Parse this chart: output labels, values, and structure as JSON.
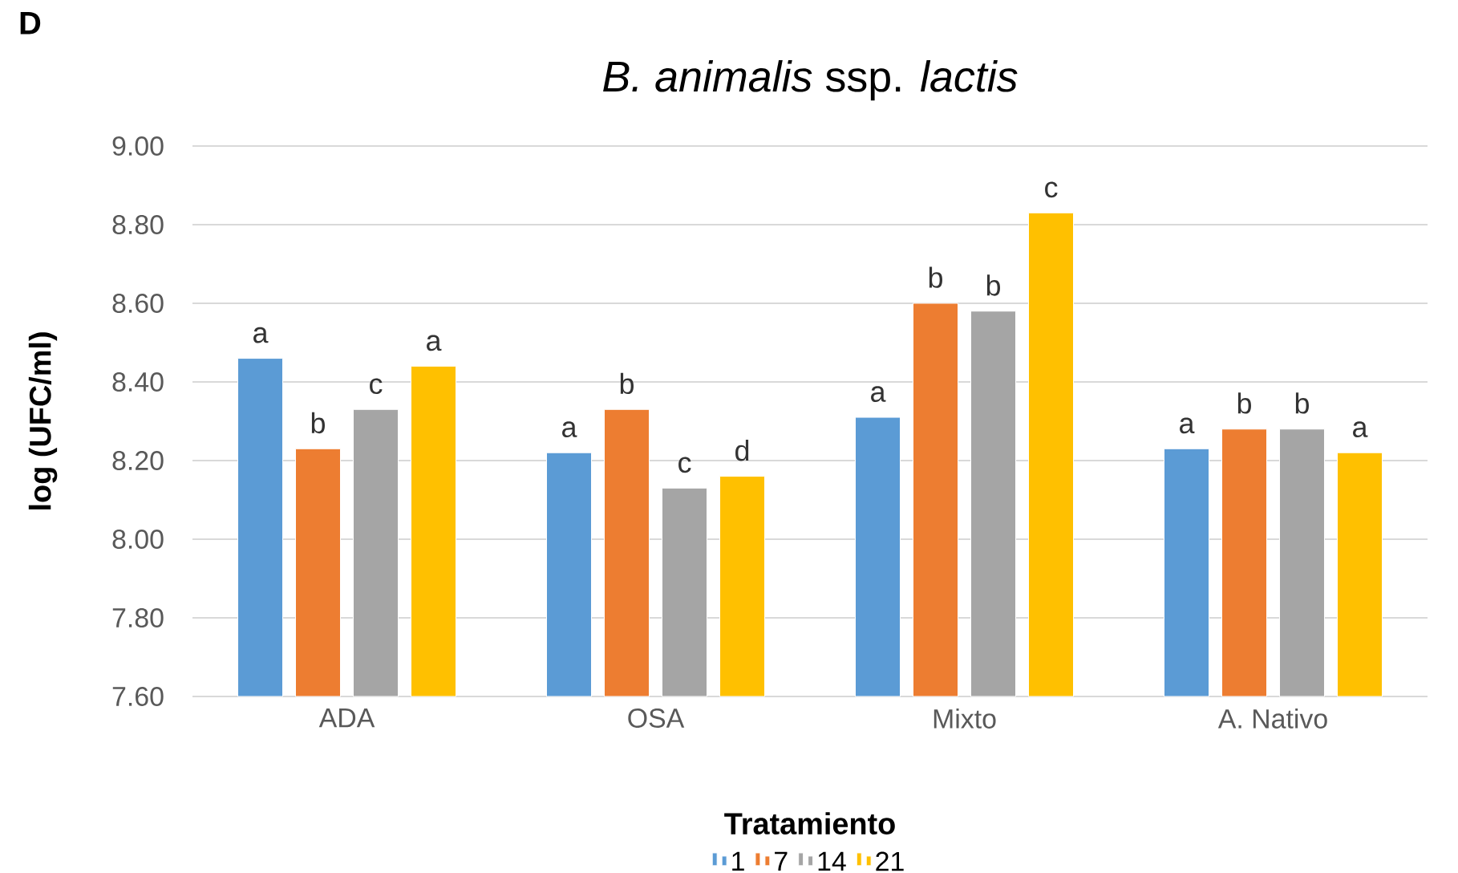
{
  "chart_data": {
    "type": "bar",
    "title": "*B. animalis* ssp. *lactis*",
    "xlabel": "Tratamiento",
    "ylabel": "log (UFC/ml)",
    "annotations": [
      "D"
    ],
    "categories": [
      "ADA",
      "OSA",
      "Mixto",
      "A. Nativo"
    ],
    "series": [
      {
        "name": "1",
        "color": "#5b9bd5",
        "values": [
          8.46,
          8.22,
          8.31,
          8.23
        ],
        "value_labels": [
          "a",
          "a",
          "a",
          "a"
        ]
      },
      {
        "name": "7",
        "color": "#ed7d31",
        "values": [
          8.23,
          8.33,
          8.6,
          8.28
        ],
        "value_labels": [
          "b",
          "b",
          "b",
          "b"
        ]
      },
      {
        "name": "14",
        "color": "#a5a5a5",
        "values": [
          8.33,
          8.13,
          8.58,
          8.28
        ],
        "value_labels": [
          "c",
          "c",
          "b",
          "b"
        ]
      },
      {
        "name": "21",
        "color": "#ffc000",
        "values": [
          8.44,
          8.16,
          8.83,
          8.22
        ],
        "value_labels": [
          "a",
          "d",
          "c",
          "a"
        ]
      }
    ],
    "ylim": [
      7.6,
      9.0
    ],
    "yticks": [
      {
        "value": 7.6,
        "label": "7.60"
      },
      {
        "value": 7.8,
        "label": "7.80"
      },
      {
        "value": 8.0,
        "label": "8.00"
      },
      {
        "value": 8.2,
        "label": "8.20"
      },
      {
        "value": 8.4,
        "label": "8.40"
      },
      {
        "value": 8.6,
        "label": "8.60"
      },
      {
        "value": 8.8,
        "label": "8.80"
      },
      {
        "value": 9.0,
        "label": "9.00"
      }
    ],
    "grid": "y",
    "legend": "bottom"
  }
}
